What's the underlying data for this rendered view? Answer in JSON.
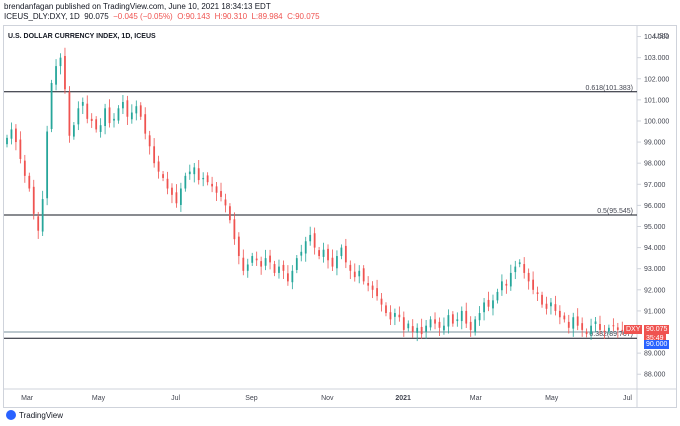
{
  "header": {
    "line1": "brendanfagan published on TradingView.com, June 10, 2021 18:34:13 EDT",
    "symbol": "ICEUS_DLY:DXY, 1D",
    "price": "90.075",
    "change": "−0.045 (−0.05%)",
    "o": "O:90.143",
    "h": "H:90.310",
    "l": "L:89.984",
    "c": "C:90.075"
  },
  "chart_title": "U.S. DOLLAR CURRENCY INDEX, 1D, ICEUS",
  "currency": "USD",
  "footer": {
    "brand": "TradingView"
  },
  "colors": {
    "up": "#26a69a",
    "down": "#ef5350",
    "line": "#131722",
    "accent": "#2962ff"
  },
  "badges": {
    "symbol": "DXY",
    "price": "90.075",
    "countdown": "35:49",
    "level": "90.000"
  },
  "chart_data": {
    "type": "candlestick",
    "title": "U.S. DOLLAR CURRENCY INDEX, 1D, ICEUS",
    "ylabel": "USD",
    "ylim": [
      87.3,
      104.5
    ],
    "y_ticks": [
      "104.000",
      "103.000",
      "102.000",
      "101.000",
      "100.000",
      "99.000",
      "98.000",
      "97.000",
      "96.000",
      "95.000",
      "94.000",
      "93.000",
      "92.000",
      "91.000",
      "90.000",
      "89.000",
      "88.000"
    ],
    "x_ticks": [
      "Mar",
      "May",
      "Jul",
      "Sep",
      "Nov",
      "2021",
      "Mar",
      "May",
      "Jul"
    ],
    "fib_levels": [
      {
        "label": "0.618(101.383)",
        "value": 101.383
      },
      {
        "label": "0.5(95.545)",
        "value": 95.545
      },
      {
        "label": "0.382(89.707)",
        "value": 89.707
      }
    ],
    "support_line": 90.0,
    "last_price": 90.075,
    "closes": [
      99.2,
      99.6,
      99.0,
      98.2,
      97.4,
      96.8,
      95.6,
      94.8,
      96.3,
      99.5,
      101.8,
      102.6,
      103.0,
      101.5,
      99.3,
      99.8,
      100.6,
      100.9,
      100.1,
      100.0,
      99.6,
      99.8,
      100.6,
      99.9,
      100.1,
      100.6,
      100.9,
      100.2,
      100.4,
      100.7,
      100.2,
      99.4,
      98.8,
      98.0,
      97.6,
      97.3,
      96.8,
      96.5,
      96.1,
      96.8,
      97.4,
      97.6,
      97.8,
      97.2,
      97.3,
      97.1,
      96.9,
      96.6,
      96.4,
      96.0,
      95.3,
      94.4,
      93.6,
      92.9,
      93.2,
      93.6,
      93.4,
      93.1,
      93.5,
      93.3,
      92.8,
      93.1,
      92.9,
      92.4,
      92.9,
      93.5,
      93.8,
      94.3,
      94.6,
      94.0,
      93.6,
      93.9,
      93.4,
      93.1,
      93.6,
      94.0,
      93.3,
      92.9,
      92.6,
      92.9,
      92.4,
      92.2,
      92.0,
      91.7,
      91.3,
      90.9,
      90.6,
      90.9,
      90.7,
      90.1,
      90.4,
      90.0,
      90.2,
      89.9,
      90.3,
      90.6,
      90.4,
      90.2,
      90.3,
      90.8,
      90.4,
      90.6,
      91.0,
      90.4,
      90.1,
      90.6,
      90.9,
      91.4,
      91.2,
      91.5,
      91.9,
      92.4,
      92.2,
      92.8,
      93.1,
      93.3,
      92.8,
      92.4,
      92.0,
      91.8,
      91.3,
      91.1,
      91.4,
      91.0,
      90.7,
      90.6,
      90.2,
      90.7,
      90.3,
      90.1,
      89.9,
      90.3,
      90.5,
      90.1,
      90.0,
      90.2,
      90.3,
      90.1,
      90.075
    ]
  }
}
